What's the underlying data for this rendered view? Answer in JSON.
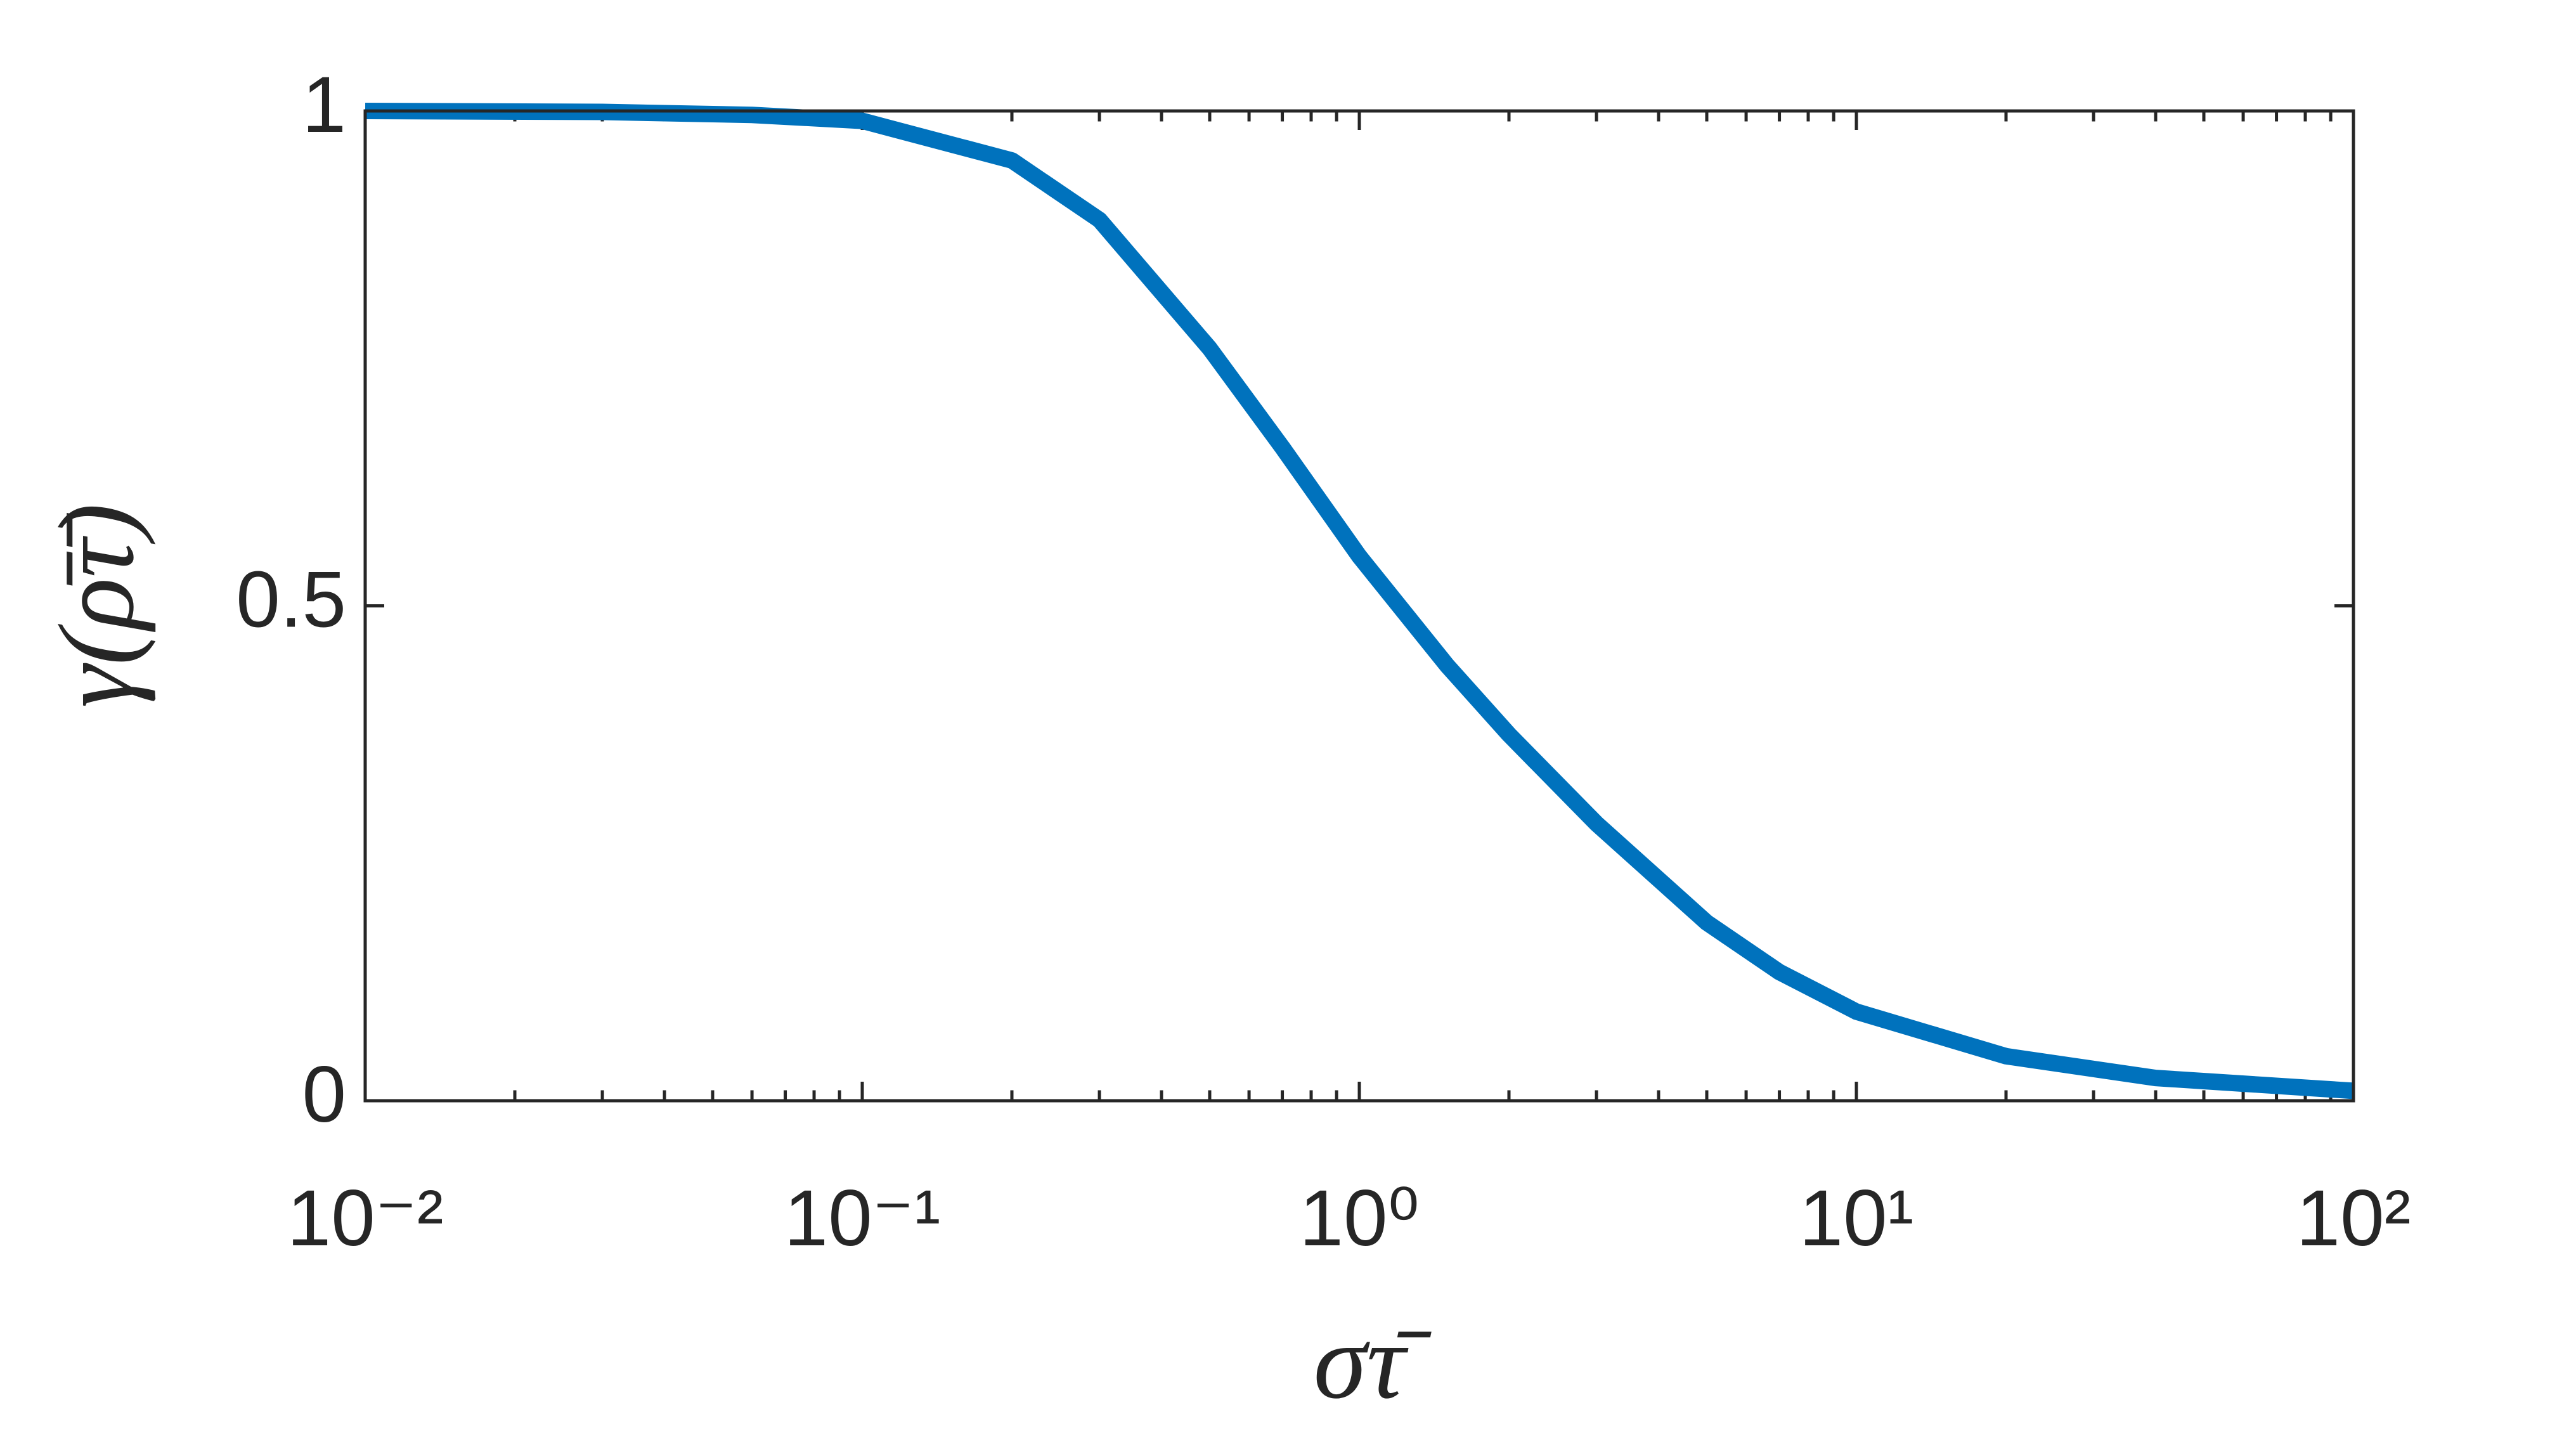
{
  "chart_data": {
    "type": "line",
    "xlabel": "στ̄",
    "ylabel": "γ(ρ̄τ̄)",
    "x": [
      0.01,
      0.03,
      0.06,
      0.1,
      0.2,
      0.3,
      0.5,
      0.7,
      1,
      1.5,
      2,
      3,
      5,
      7,
      10,
      20,
      40,
      100
    ],
    "series": [
      {
        "color": "#0072bd",
        "values": [
          1.0,
          0.999,
          0.996,
          0.99,
          0.95,
          0.89,
          0.76,
          0.66,
          0.55,
          0.44,
          0.37,
          0.28,
          0.18,
          0.13,
          0.09,
          0.045,
          0.023,
          0.01
        ]
      }
    ],
    "xlim": [
      0.01,
      100
    ],
    "ylim": [
      0,
      1
    ],
    "xticks": [
      {
        "value": 0.01,
        "label": "10⁻²"
      },
      {
        "value": 0.1,
        "label": "10⁻¹"
      },
      {
        "value": 1,
        "label": "10⁰"
      },
      {
        "value": 10,
        "label": "10¹"
      },
      {
        "value": 100,
        "label": "10²"
      }
    ],
    "yticks": [
      0,
      0.5,
      1
    ],
    "xscale": "log",
    "grid": false,
    "minor_ticks": true
  }
}
